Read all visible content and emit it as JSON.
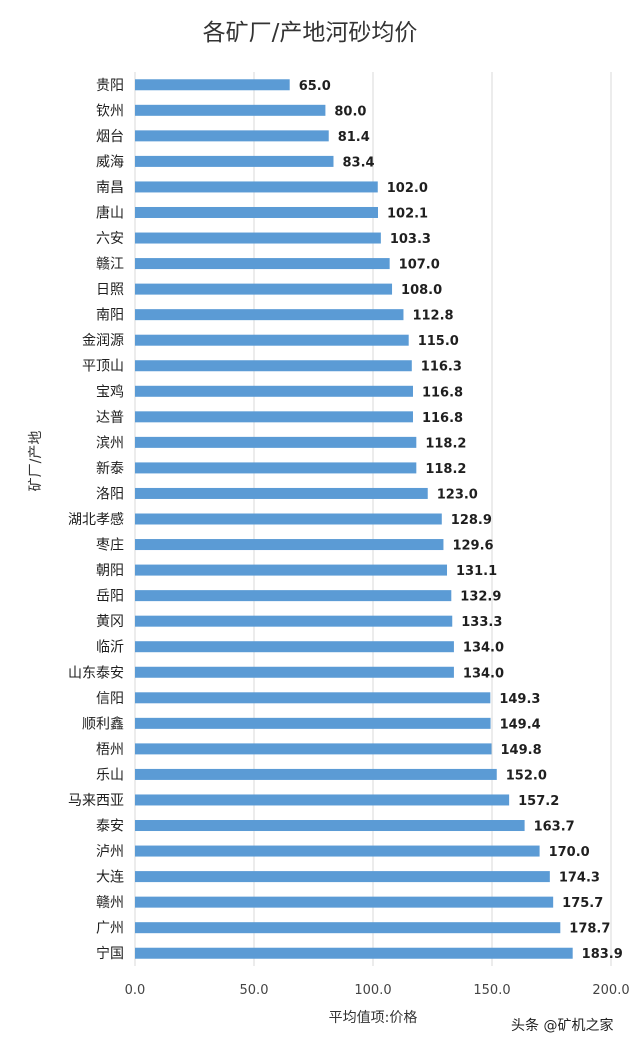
{
  "chart_data": {
    "type": "bar",
    "orientation": "horizontal",
    "title": "各矿厂/产地河砂均价",
    "xlabel": "平均值项:价格",
    "ylabel": "矿厂/产地",
    "xlim": [
      0,
      200
    ],
    "xticks": [
      "0.0",
      "50.0",
      "100.0",
      "150.0",
      "200.0"
    ],
    "grid": true,
    "bar_color": "#5B9BD5",
    "categories": [
      "贵阳",
      "钦州",
      "烟台",
      "威海",
      "南昌",
      "唐山",
      "六安",
      "赣江",
      "日照",
      "南阳",
      "金润源",
      "平顶山",
      "宝鸡",
      "达普",
      "滨州",
      "新泰",
      "洛阳",
      "湖北孝感",
      "枣庄",
      "朝阳",
      "岳阳",
      "黄冈",
      "临沂",
      "山东泰安",
      "信阳",
      "顺利鑫",
      "梧州",
      "乐山",
      "马来西亚",
      "泰安",
      "泸州",
      "大连",
      "赣州",
      "广州",
      "宁国"
    ],
    "values": [
      65.0,
      80.0,
      81.4,
      83.4,
      102.0,
      102.1,
      103.3,
      107.0,
      108.0,
      112.8,
      115.0,
      116.3,
      116.8,
      116.8,
      118.2,
      118.2,
      123.0,
      128.9,
      129.6,
      131.1,
      132.9,
      133.3,
      134.0,
      134.0,
      149.3,
      149.4,
      149.8,
      152.0,
      157.2,
      163.7,
      170.0,
      174.3,
      175.7,
      178.7,
      183.9
    ],
    "value_labels": [
      "65.0",
      "80.0",
      "81.4",
      "83.4",
      "102.0",
      "102.1",
      "103.3",
      "107.0",
      "108.0",
      "112.8",
      "115.0",
      "116.3",
      "116.8",
      "116.8",
      "118.2",
      "118.2",
      "123.0",
      "128.9",
      "129.6",
      "131.1",
      "132.9",
      "133.3",
      "134.0",
      "134.0",
      "149.3",
      "149.4",
      "149.8",
      "152.0",
      "157.2",
      "163.7",
      "170.0",
      "174.3",
      "175.7",
      "178.7",
      "183.9"
    ]
  },
  "watermark": "头条 @矿机之家"
}
